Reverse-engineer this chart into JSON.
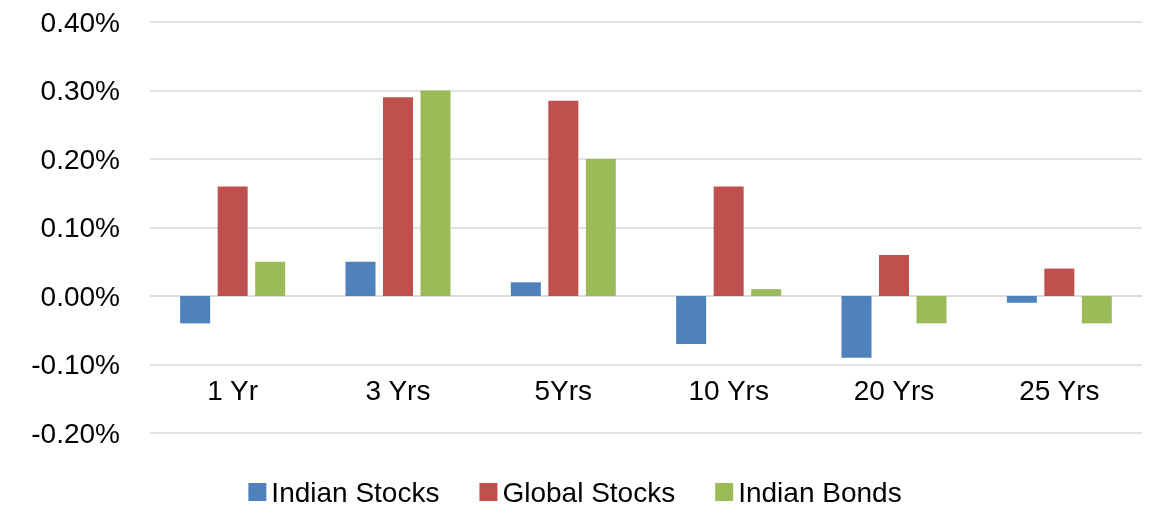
{
  "chart_data": {
    "type": "bar",
    "categories": [
      "1 Yr",
      "3 Yrs",
      "5Yrs",
      "10 Yrs",
      "20 Yrs",
      "25 Yrs"
    ],
    "series": [
      {
        "name": "Indian Stocks",
        "color": "#4f81bd",
        "values": [
          -0.04,
          0.05,
          0.02,
          -0.07,
          -0.09,
          -0.01
        ]
      },
      {
        "name": "Global Stocks",
        "color": "#c0504d",
        "values": [
          0.16,
          0.29,
          0.285,
          0.16,
          0.06,
          0.04
        ]
      },
      {
        "name": "Indian Bonds",
        "color": "#9bbb59",
        "values": [
          0.05,
          0.3,
          0.2,
          0.01,
          -0.04,
          -0.04
        ]
      }
    ],
    "ylim": [
      -0.2,
      0.4
    ],
    "yticks": [
      {
        "value": -0.2,
        "label": "-0.20%"
      },
      {
        "value": -0.1,
        "label": "-0.10%"
      },
      {
        "value": 0,
        "label": "0.00%"
      },
      {
        "value": 0.1,
        "label": "0.10%"
      },
      {
        "value": 0.2,
        "label": "0.20%"
      },
      {
        "value": 0.3,
        "label": "0.30%"
      },
      {
        "value": 0.4,
        "label": "0.40%"
      }
    ],
    "grid": "y",
    "legend": "bottom"
  }
}
